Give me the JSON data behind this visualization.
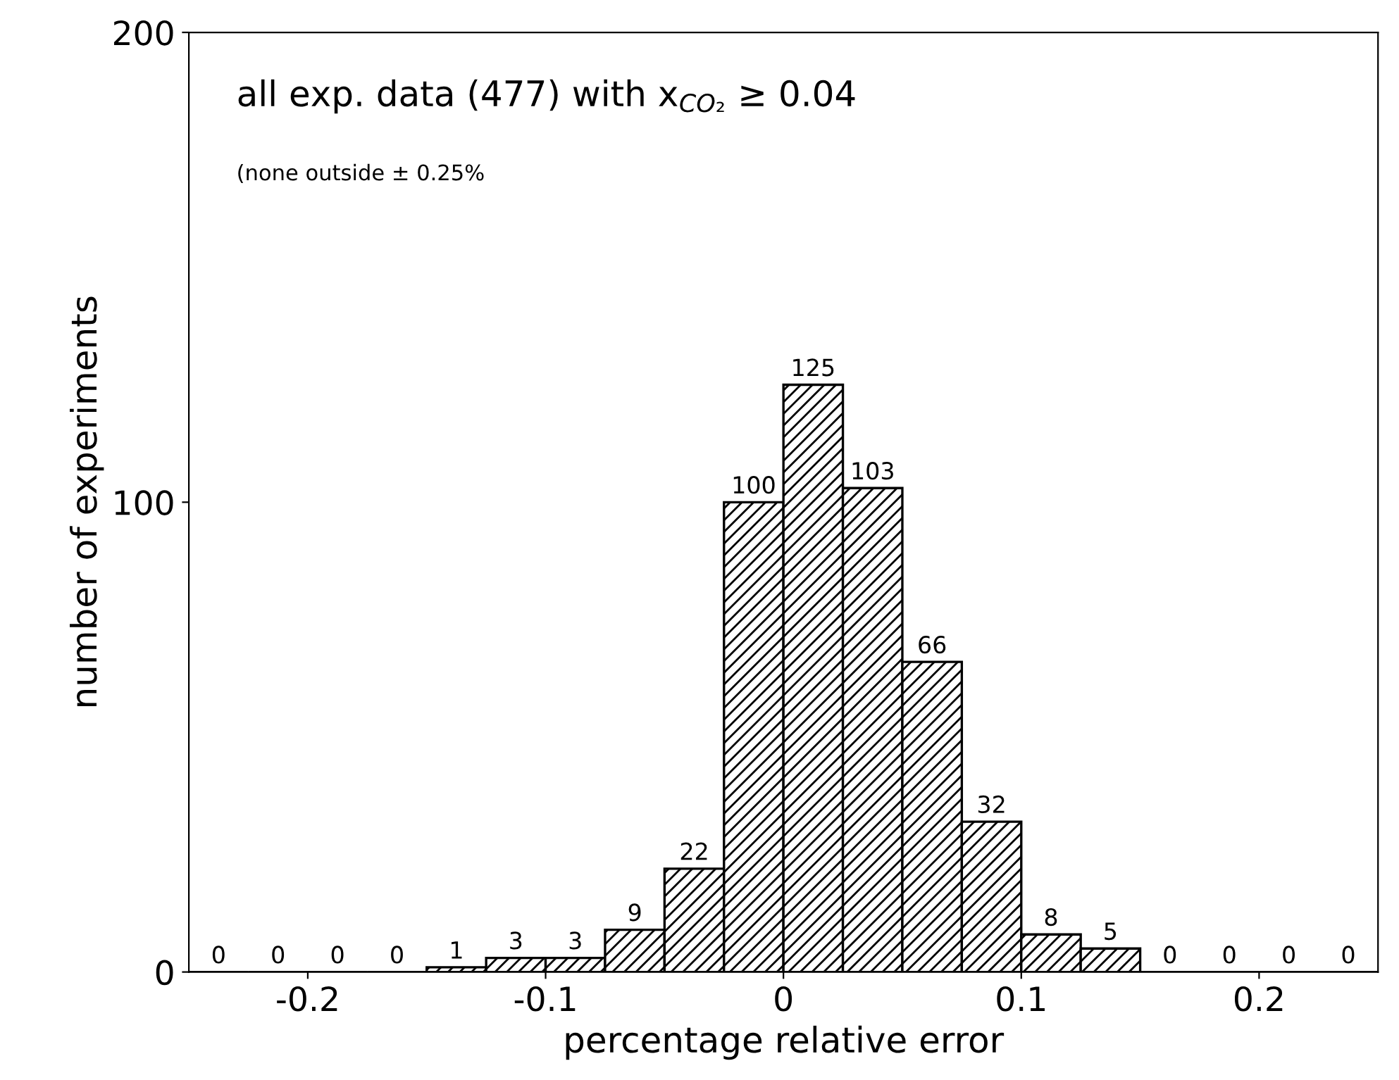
{
  "chart_data": {
    "type": "histogram",
    "title": "all exp. data (477) with x$_{CO₂}$ ≥ 0.04",
    "subtitle": "(none outside ± 0.25%",
    "xlabel": "percentage relative error",
    "ylabel": "number of experiments",
    "bins": [
      -0.25,
      -0.225,
      -0.2,
      -0.175,
      -0.15,
      -0.125,
      -0.1,
      -0.075,
      -0.05,
      -0.025,
      0,
      0.025,
      0.05,
      0.075,
      0.1,
      0.125,
      0.15,
      0.175,
      0.2,
      0.225,
      0.25
    ],
    "values": [
      0,
      0,
      0,
      0,
      1,
      3,
      3,
      9,
      22,
      100,
      125,
      103,
      66,
      32,
      8,
      5,
      0,
      0,
      0,
      0
    ],
    "color": "#000000",
    "data_labels": true,
    "xlim": [
      -0.25,
      0.25
    ],
    "ylim": [
      0,
      200
    ],
    "xticks": [
      {
        "value": -0.2,
        "label": "-0.2"
      },
      {
        "value": -0.1,
        "label": "-0.1"
      },
      0,
      0.1,
      0.2
    ],
    "yticks": [
      0,
      100,
      200
    ],
    "grid": false,
    "legend": false
  }
}
